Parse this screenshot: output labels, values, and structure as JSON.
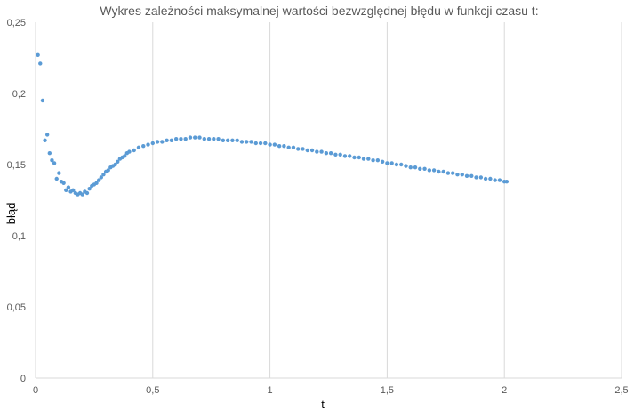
{
  "chart_data": {
    "type": "scatter",
    "title": "Wykres zależności maksymalnej wartości bezwzględnej błędu w funkcji czasu t:",
    "xlabel": "t",
    "ylabel": "błąd",
    "xlim": [
      0,
      2.5
    ],
    "ylim": [
      0,
      0.25
    ],
    "x_ticks": [
      0,
      0.5,
      1,
      1.5,
      2,
      2.5
    ],
    "x_tick_labels": [
      "0",
      "0,5",
      "1",
      "1,5",
      "2",
      "2,5"
    ],
    "y_ticks": [
      0,
      0.05,
      0.1,
      0.15,
      0.2,
      0.25
    ],
    "y_tick_labels": [
      "0",
      "0,05",
      "0,1",
      "0,15",
      "0,2",
      "0,25"
    ],
    "grid": "vertical",
    "legend": "none",
    "colors": {
      "marker": "#5b9bd5",
      "grid": "#d9d9d9",
      "text": "#595959"
    },
    "series": [
      {
        "x": [
          0.01,
          0.02,
          0.03,
          0.04,
          0.05,
          0.06,
          0.07,
          0.08,
          0.09,
          0.1,
          0.11,
          0.12,
          0.13,
          0.14,
          0.15,
          0.16,
          0.17,
          0.18,
          0.19,
          0.2,
          0.21,
          0.22,
          0.23,
          0.24,
          0.25,
          0.26,
          0.27,
          0.28,
          0.29,
          0.3,
          0.31,
          0.32,
          0.33,
          0.34,
          0.35,
          0.36,
          0.37,
          0.38,
          0.39,
          0.4,
          0.42,
          0.44,
          0.46,
          0.48,
          0.5,
          0.52,
          0.54,
          0.56,
          0.58,
          0.6,
          0.62,
          0.64,
          0.66,
          0.68,
          0.7,
          0.72,
          0.74,
          0.76,
          0.78,
          0.8,
          0.82,
          0.84,
          0.86,
          0.88,
          0.9,
          0.92,
          0.94,
          0.96,
          0.98,
          1.0,
          1.02,
          1.04,
          1.06,
          1.08,
          1.1,
          1.12,
          1.14,
          1.16,
          1.18,
          1.2,
          1.22,
          1.24,
          1.26,
          1.28,
          1.3,
          1.32,
          1.34,
          1.36,
          1.38,
          1.4,
          1.42,
          1.44,
          1.46,
          1.48,
          1.5,
          1.52,
          1.54,
          1.56,
          1.58,
          1.6,
          1.62,
          1.64,
          1.66,
          1.68,
          1.7,
          1.72,
          1.74,
          1.76,
          1.78,
          1.8,
          1.82,
          1.84,
          1.86,
          1.88,
          1.9,
          1.92,
          1.94,
          1.96,
          1.98,
          2.0,
          2.01
        ],
        "y": [
          0.227,
          0.221,
          0.195,
          0.167,
          0.171,
          0.158,
          0.153,
          0.151,
          0.14,
          0.144,
          0.138,
          0.137,
          0.132,
          0.134,
          0.131,
          0.132,
          0.13,
          0.129,
          0.13,
          0.129,
          0.131,
          0.13,
          0.133,
          0.135,
          0.136,
          0.137,
          0.139,
          0.141,
          0.143,
          0.145,
          0.146,
          0.148,
          0.149,
          0.15,
          0.152,
          0.154,
          0.155,
          0.156,
          0.158,
          0.159,
          0.16,
          0.162,
          0.163,
          0.164,
          0.165,
          0.166,
          0.166,
          0.167,
          0.167,
          0.168,
          0.168,
          0.168,
          0.169,
          0.169,
          0.169,
          0.168,
          0.168,
          0.168,
          0.168,
          0.167,
          0.167,
          0.167,
          0.167,
          0.166,
          0.166,
          0.166,
          0.165,
          0.165,
          0.165,
          0.164,
          0.164,
          0.163,
          0.163,
          0.162,
          0.162,
          0.161,
          0.161,
          0.16,
          0.16,
          0.159,
          0.159,
          0.158,
          0.158,
          0.157,
          0.157,
          0.156,
          0.156,
          0.155,
          0.155,
          0.154,
          0.154,
          0.153,
          0.153,
          0.152,
          0.151,
          0.151,
          0.15,
          0.15,
          0.149,
          0.148,
          0.148,
          0.147,
          0.147,
          0.146,
          0.146,
          0.145,
          0.145,
          0.144,
          0.144,
          0.143,
          0.143,
          0.142,
          0.142,
          0.141,
          0.141,
          0.14,
          0.14,
          0.139,
          0.139,
          0.138,
          0.138
        ]
      }
    ]
  }
}
